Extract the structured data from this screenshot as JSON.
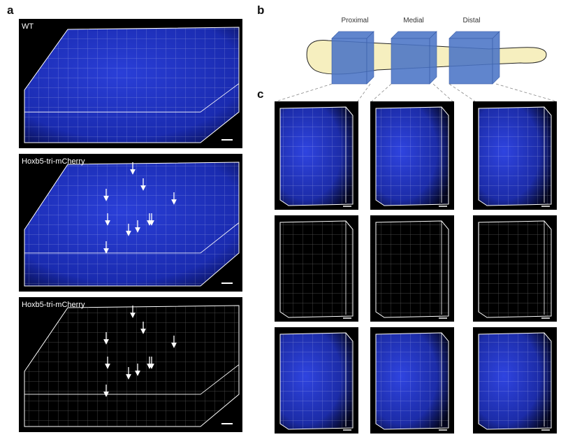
{
  "panels": {
    "a": {
      "label": "a",
      "images": [
        {
          "label": "WT"
        },
        {
          "label": "Hoxb5-tri-mCherry"
        },
        {
          "label": "Hoxb5-tri-mCherry"
        }
      ]
    },
    "b": {
      "label": "b",
      "regions": [
        "Proximal",
        "Medial",
        "Distal"
      ]
    },
    "c": {
      "label": "c"
    }
  }
}
